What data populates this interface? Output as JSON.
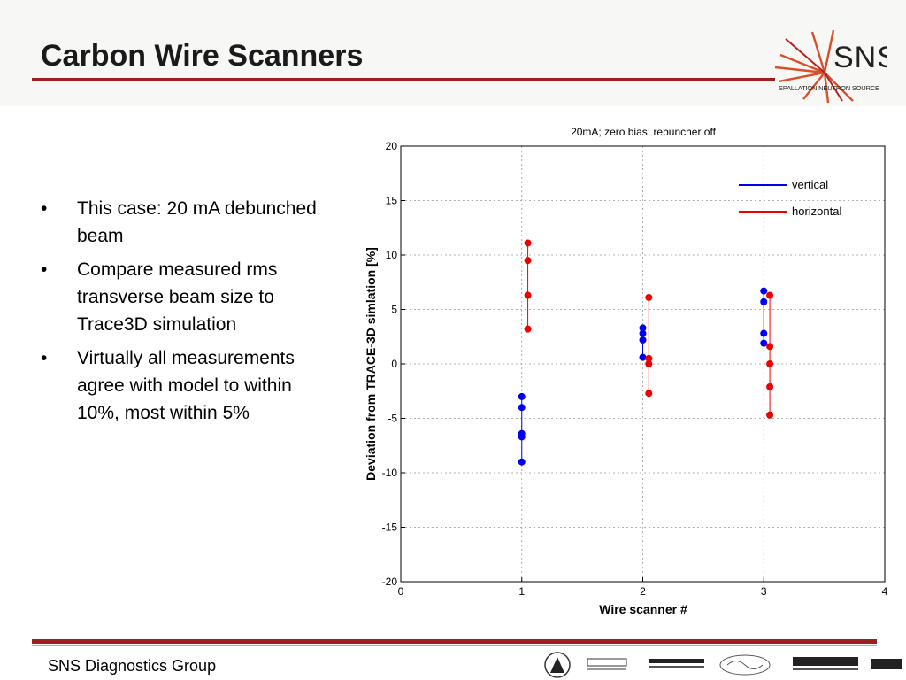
{
  "slide": {
    "title": "Carbon Wire Scanners",
    "logo_text": "SNS",
    "logo_subtext": "SPALLATION NEUTRON SOURCE",
    "bullets": [
      "This case: 20 mA debunched beam",
      "Compare measured rms transverse beam size to Trace3D simulation",
      "Virtually all measurements agree with model to within 10%, most within 5%"
    ],
    "footer": "SNS Diagnostics Group",
    "partner_logos": [
      "BERKELEY LAB",
      "BROOKHAVEN NATIONAL LABORATORY",
      "Jefferson Lab",
      "Los Alamos NATIONAL LABORATORY",
      "ornl"
    ]
  },
  "chart_data": {
    "type": "scatter",
    "title": "20mA; zero bias; rebuncher off",
    "xlabel": "Wire scanner #",
    "ylabel": "Deviation from TRACE-3D simlation [%]",
    "xlim": [
      0,
      4
    ],
    "ylim": [
      -20,
      20
    ],
    "xticks": [
      0,
      1,
      2,
      3,
      4
    ],
    "yticks": [
      20,
      15,
      10,
      5,
      0,
      -5,
      -10,
      -15,
      -20
    ],
    "grid": true,
    "legend_position": "top-right",
    "series": [
      {
        "name": "vertical",
        "color": "#0000ee",
        "points": [
          {
            "x": 1,
            "y": -3.0
          },
          {
            "x": 1,
            "y": -4.0
          },
          {
            "x": 1,
            "y": -6.4
          },
          {
            "x": 1,
            "y": -6.7
          },
          {
            "x": 1,
            "y": -9.0
          },
          {
            "x": 2,
            "y": 3.3
          },
          {
            "x": 2,
            "y": 2.8
          },
          {
            "x": 2,
            "y": 2.2
          },
          {
            "x": 2,
            "y": 0.6
          },
          {
            "x": 3,
            "y": 6.7
          },
          {
            "x": 3,
            "y": 5.7
          },
          {
            "x": 3,
            "y": 2.8
          },
          {
            "x": 3,
            "y": 1.9
          }
        ]
      },
      {
        "name": "horizontal",
        "color": "#ee0000",
        "points": [
          {
            "x": 1.05,
            "y": 11.1
          },
          {
            "x": 1.05,
            "y": 9.5
          },
          {
            "x": 1.05,
            "y": 6.3
          },
          {
            "x": 1.05,
            "y": 3.2
          },
          {
            "x": 2.05,
            "y": 6.1
          },
          {
            "x": 2.05,
            "y": 0.5
          },
          {
            "x": 2.05,
            "y": 0.0
          },
          {
            "x": 2.05,
            "y": -2.7
          },
          {
            "x": 3.05,
            "y": 6.3
          },
          {
            "x": 3.05,
            "y": 1.6
          },
          {
            "x": 3.05,
            "y": 0.0
          },
          {
            "x": 3.05,
            "y": -2.1
          },
          {
            "x": 3.05,
            "y": -4.7
          }
        ]
      }
    ]
  }
}
